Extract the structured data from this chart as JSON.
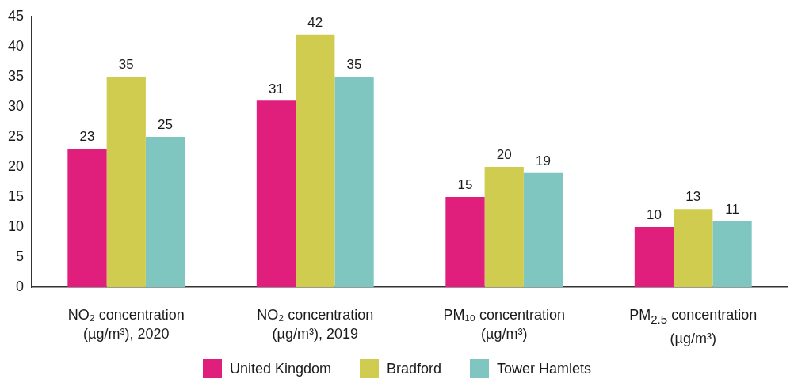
{
  "chart_data": {
    "type": "bar",
    "categories": [
      "NO₂ concentration (µg/m³), 2020",
      "NO₂ concentration (µg/m³), 2019",
      "PM₁₀ concentration (µg/m³)",
      "PM$_{2.5}$ concentration (µg/m³)"
    ],
    "series": [
      {
        "name": "United Kingdom",
        "color": "#e01f7c",
        "values": [
          23,
          31,
          15,
          10
        ]
      },
      {
        "name": "Bradford",
        "color": "#cfcc50",
        "values": [
          35,
          42,
          20,
          13
        ]
      },
      {
        "name": "Tower Hamlets",
        "color": "#80c6c0",
        "values": [
          25,
          35,
          19,
          11
        ]
      }
    ],
    "ylim": [
      0,
      45
    ],
    "yticks": [
      0,
      5,
      10,
      15,
      20,
      25,
      30,
      35,
      40,
      45
    ],
    "grid": false,
    "legend": "bottom",
    "data_labels": true
  }
}
